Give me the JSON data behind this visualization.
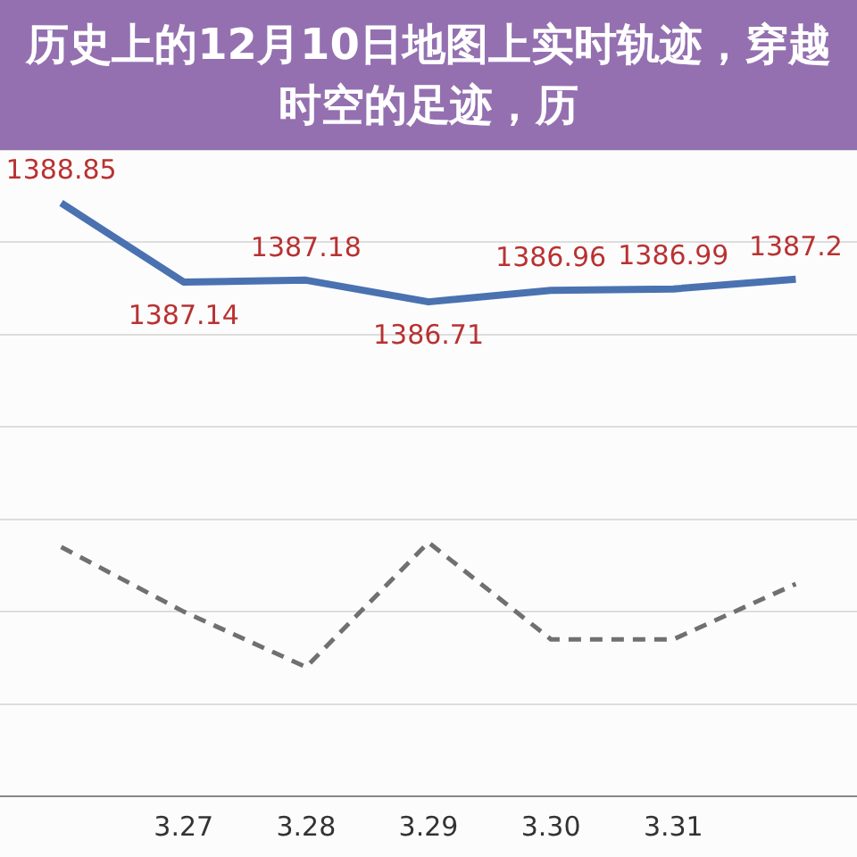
{
  "chart_data": {
    "type": "line",
    "title": "历史上的12月10日地图上实时轨迹，穿越时空的足迹，历",
    "categories": [
      null,
      "3.27",
      "3.28",
      "3.29",
      "3.30",
      "3.31",
      null
    ],
    "grid": "y",
    "tick_labels": "x",
    "series": [
      {
        "color": "#4a72b0",
        "values": [
          1388.85,
          1387.14,
          1387.18,
          1386.71,
          1386.96,
          1386.99,
          1387.2
        ],
        "value_labels": [
          "1388.85",
          "1387.14",
          "1387.18",
          "1386.71",
          "1386.96",
          "1386.99",
          "1387.2"
        ],
        "line_style": "solid",
        "marker": "none"
      },
      {
        "color": "#707070",
        "values": [
          1381.4,
          1380.0,
          1378.8,
          1381.5,
          1379.4,
          1379.4,
          1380.6
        ],
        "line_style": "dashed",
        "marker": "none"
      }
    ]
  }
}
